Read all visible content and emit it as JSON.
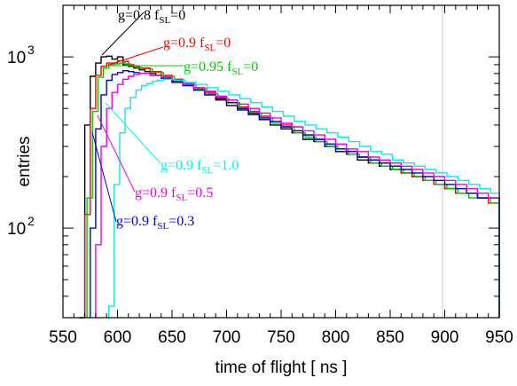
{
  "chart_data": {
    "type": "line",
    "xlabel": "time of flight [ ns ]",
    "ylabel": "entries",
    "xlim": [
      550,
      950
    ],
    "ylim": [
      30,
      2000
    ],
    "yscale": "log",
    "grid": false,
    "x_ticks": [
      550,
      600,
      650,
      700,
      750,
      800,
      850,
      900,
      950
    ],
    "x_tick_labels": [
      "550",
      "600",
      "650",
      "700",
      "750",
      "800",
      "850",
      "900",
      "950"
    ],
    "y_ticks": [
      {
        "value": 100,
        "base": "10",
        "exp": "2"
      },
      {
        "value": 1000,
        "base": "10",
        "exp": "3"
      }
    ],
    "bin_width_ns": 5,
    "series": [
      {
        "label_main": "g=0.8 f",
        "label_sub": "SL",
        "label_tail": "=0",
        "color": "#000000",
        "x": [
          565,
          570,
          575,
          580,
          585,
          590,
          595,
          600,
          605,
          610,
          615,
          620,
          625,
          630,
          635,
          640,
          645,
          650,
          660,
          670,
          680,
          690,
          700,
          710,
          720,
          730,
          740,
          750,
          760,
          770,
          780,
          790,
          800,
          810,
          820,
          830,
          840,
          850,
          860,
          870,
          880,
          890,
          900,
          910,
          920,
          930,
          940,
          950
        ],
        "y": [
          30,
          400,
          770,
          920,
          1000,
          1010,
          970,
          1000,
          900,
          880,
          860,
          840,
          820,
          800,
          780,
          760,
          740,
          710,
          680,
          640,
          600,
          560,
          520,
          490,
          460,
          430,
          400,
          380,
          360,
          330,
          320,
          300,
          280,
          270,
          250,
          240,
          230,
          220,
          210,
          200,
          190,
          180,
          170,
          160,
          160,
          150,
          150,
          140
        ]
      },
      {
        "label_main": "g=0.9 f",
        "label_sub": "SL",
        "label_tail": "=0",
        "color": "#ff0000",
        "x": [
          570,
          575,
          580,
          585,
          590,
          595,
          600,
          605,
          610,
          615,
          620,
          630,
          640,
          650,
          660,
          670,
          680,
          690,
          700,
          710,
          720,
          730,
          740,
          750,
          760,
          770,
          780,
          790,
          800,
          810,
          820,
          830,
          840,
          850,
          860,
          870,
          880,
          890,
          900,
          910,
          920,
          930,
          940,
          950
        ],
        "y": [
          120,
          500,
          780,
          880,
          920,
          920,
          950,
          940,
          900,
          880,
          860,
          820,
          780,
          740,
          700,
          660,
          620,
          580,
          540,
          510,
          480,
          450,
          420,
          400,
          370,
          350,
          330,
          310,
          290,
          280,
          260,
          250,
          240,
          230,
          210,
          200,
          190,
          180,
          170,
          160,
          160,
          150,
          140,
          140
        ]
      },
      {
        "label_main": "g=0.95 f",
        "label_sub": "SL",
        "label_tail": "=0",
        "color": "#00cc00",
        "x": [
          572,
          577,
          582,
          587,
          592,
          597,
          602,
          607,
          612,
          617,
          622,
          632,
          642,
          652,
          662,
          672,
          682,
          692,
          702,
          712,
          722,
          732,
          742,
          752,
          762,
          772,
          782,
          792,
          802,
          812,
          822,
          832,
          842,
          852,
          862,
          872,
          882,
          892,
          902,
          912,
          922,
          932,
          942,
          950
        ],
        "y": [
          150,
          480,
          760,
          860,
          900,
          910,
          920,
          910,
          890,
          870,
          850,
          810,
          770,
          730,
          690,
          650,
          610,
          570,
          540,
          500,
          470,
          440,
          410,
          390,
          360,
          340,
          320,
          300,
          290,
          270,
          260,
          240,
          230,
          220,
          210,
          200,
          190,
          180,
          170,
          160,
          150,
          150,
          140,
          140
        ]
      },
      {
        "label_main": "g=0.9 f",
        "label_sub": "SL",
        "label_tail": "=0.3",
        "color": "#0000dd",
        "x": [
          575,
          580,
          585,
          590,
          595,
          600,
          605,
          610,
          615,
          620,
          630,
          640,
          650,
          660,
          670,
          680,
          690,
          700,
          710,
          720,
          730,
          740,
          750,
          760,
          770,
          780,
          790,
          800,
          810,
          820,
          830,
          840,
          850,
          860,
          870,
          880,
          890,
          900,
          910,
          920,
          930,
          940,
          950
        ],
        "y": [
          100,
          380,
          600,
          730,
          790,
          810,
          830,
          820,
          810,
          800,
          780,
          750,
          720,
          680,
          640,
          600,
          570,
          540,
          500,
          470,
          440,
          420,
          390,
          370,
          350,
          330,
          310,
          290,
          280,
          260,
          250,
          240,
          230,
          220,
          210,
          200,
          190,
          180,
          170,
          160,
          150,
          150,
          140
        ]
      },
      {
        "label_main": "g=0.9 f",
        "label_sub": "SL",
        "label_tail": "=0.5",
        "color": "#ee00ee",
        "x": [
          580,
          585,
          590,
          595,
          600,
          605,
          610,
          615,
          620,
          630,
          640,
          650,
          660,
          670,
          680,
          690,
          700,
          710,
          720,
          730,
          740,
          750,
          760,
          770,
          780,
          790,
          800,
          810,
          820,
          830,
          840,
          850,
          860,
          870,
          880,
          890,
          900,
          910,
          920,
          930,
          940,
          950
        ],
        "y": [
          80,
          300,
          500,
          620,
          690,
          740,
          770,
          790,
          800,
          780,
          760,
          730,
          700,
          660,
          630,
          590,
          560,
          530,
          500,
          470,
          440,
          410,
          390,
          370,
          350,
          330,
          310,
          290,
          280,
          260,
          250,
          240,
          230,
          220,
          210,
          200,
          190,
          180,
          170,
          160,
          150,
          150
        ]
      },
      {
        "label_main": "g=0.9 f",
        "label_sub": "SL",
        "label_tail": "=1.0",
        "color": "#00eeee",
        "x": [
          592,
          597,
          602,
          607,
          612,
          617,
          622,
          627,
          632,
          637,
          642,
          652,
          662,
          672,
          682,
          692,
          702,
          712,
          722,
          732,
          742,
          752,
          762,
          772,
          782,
          792,
          802,
          812,
          822,
          832,
          842,
          852,
          862,
          872,
          882,
          892,
          902,
          912,
          922,
          932,
          942,
          950
        ],
        "y": [
          35,
          180,
          360,
          500,
          580,
          640,
          680,
          700,
          720,
          730,
          740,
          730,
          710,
          690,
          660,
          630,
          600,
          570,
          540,
          510,
          480,
          450,
          420,
          400,
          380,
          360,
          340,
          320,
          300,
          280,
          270,
          250,
          240,
          230,
          220,
          210,
          200,
          190,
          180,
          170,
          160,
          160
        ]
      }
    ]
  }
}
